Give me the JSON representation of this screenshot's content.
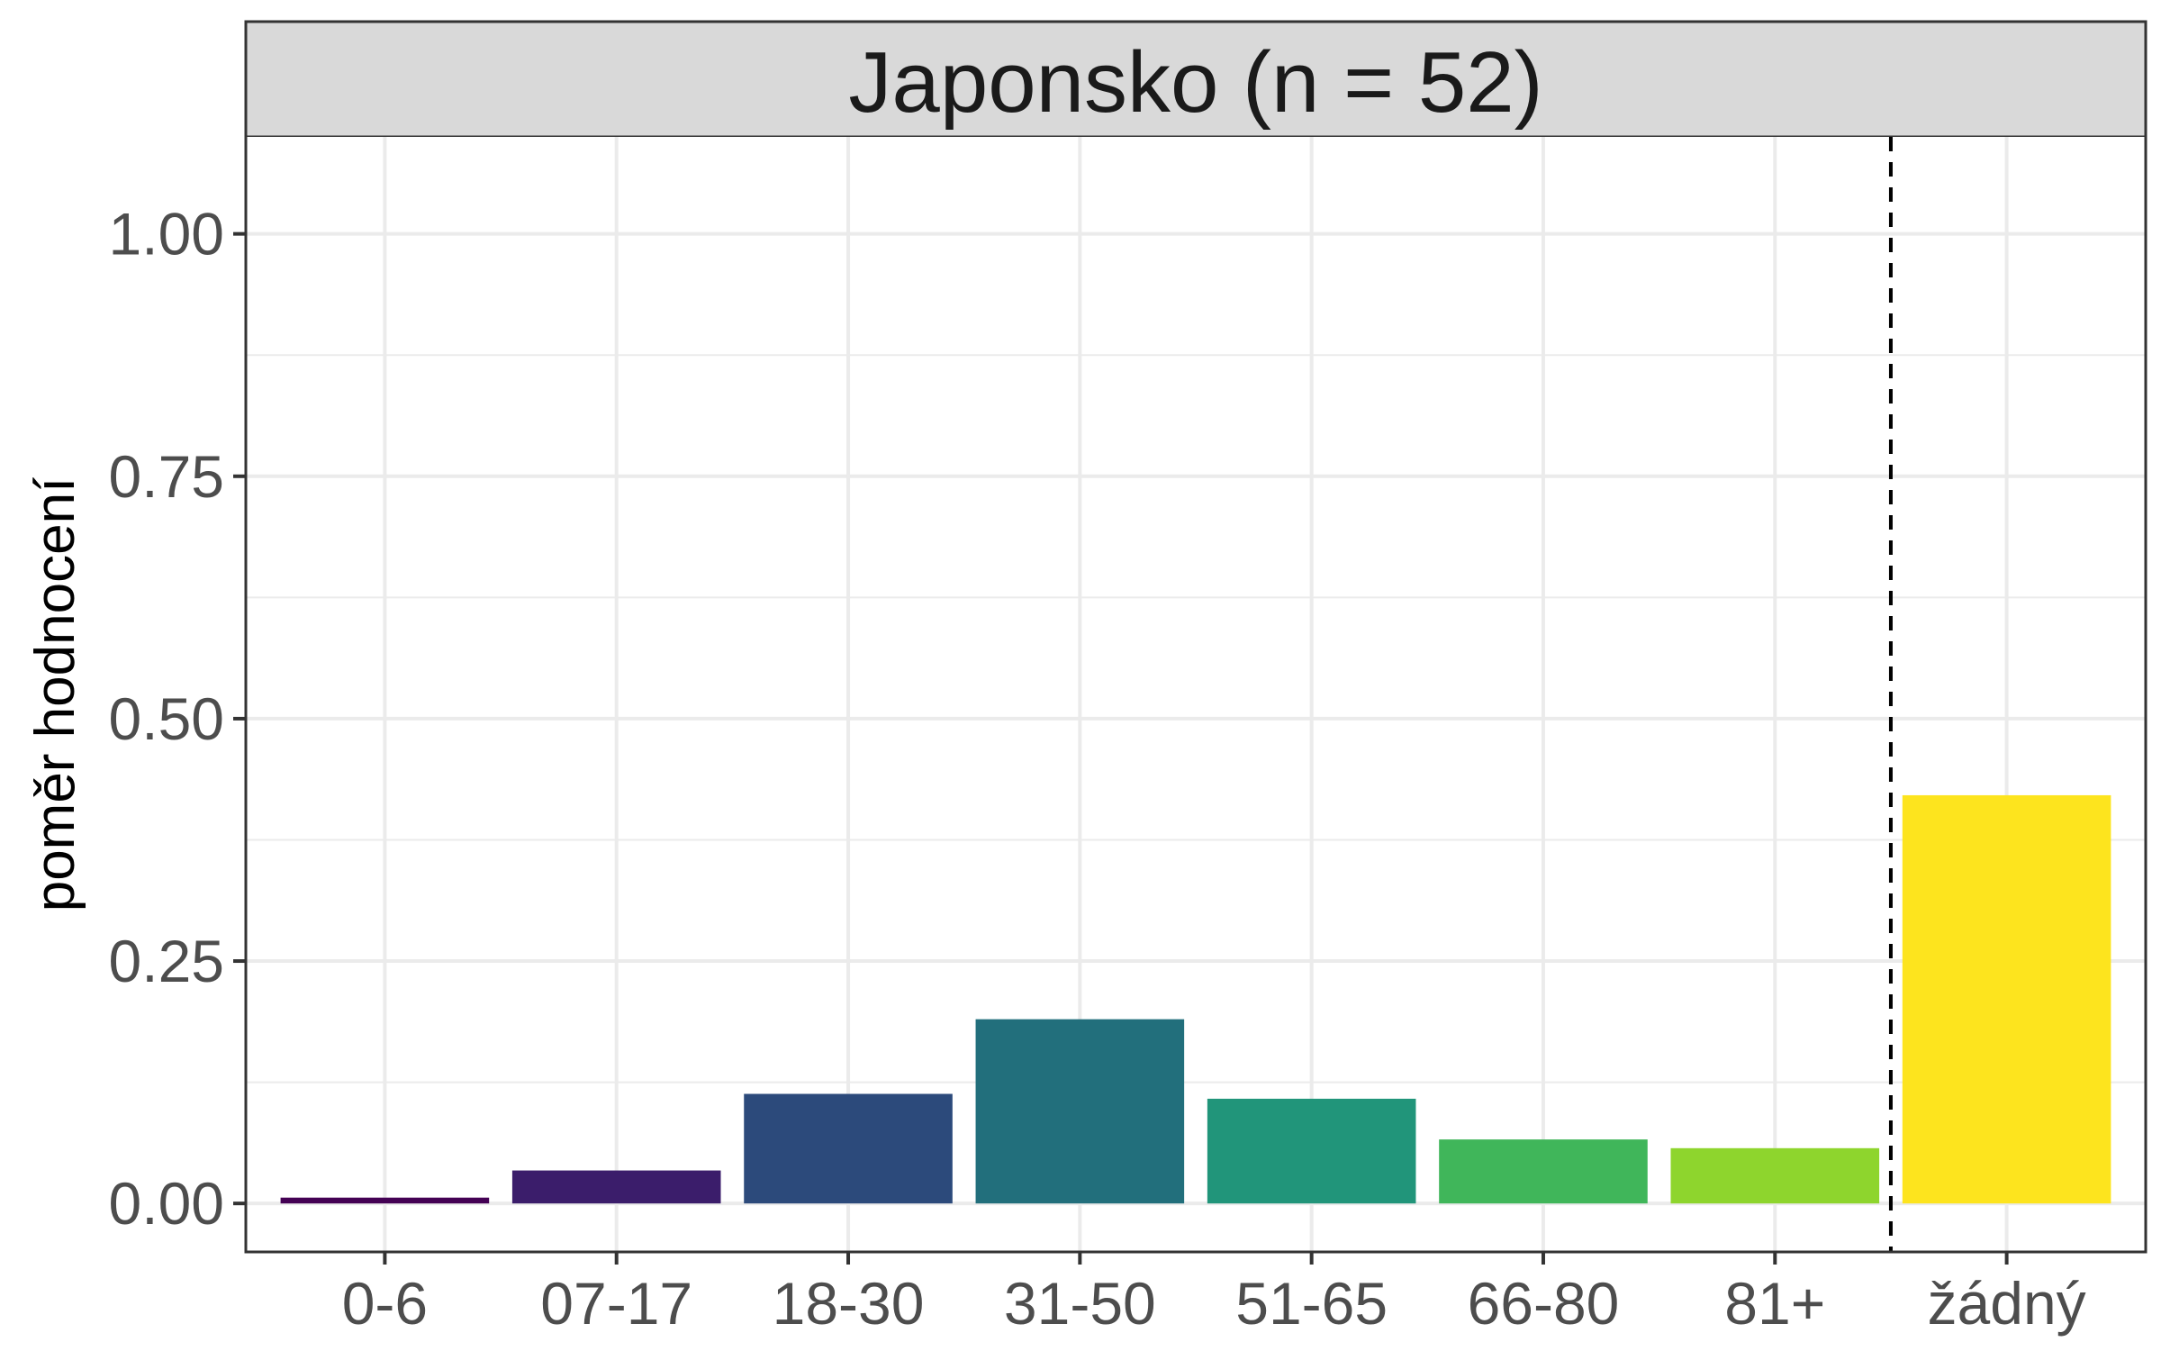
{
  "chart_data": {
    "type": "bar",
    "title": "Japonsko (n = 52)",
    "xlabel": "",
    "ylabel": "poměr hodnocení",
    "categories": [
      "0-6",
      "07-17",
      "18-30",
      "31-50",
      "51-65",
      "66-80",
      "81+",
      "žádný"
    ],
    "values": [
      0.006,
      0.034,
      0.113,
      0.19,
      0.108,
      0.066,
      0.057,
      0.421
    ],
    "colors": [
      "#440154",
      "#3B1D6B",
      "#2C4A7B",
      "#226F7C",
      "#21957A",
      "#40B65A",
      "#8ED52D",
      "#FDE41E"
    ],
    "ylim": [
      -0.05,
      1.1
    ],
    "yticks": [
      0,
      0.25,
      0.5,
      0.75,
      1
    ],
    "ytick_labels": [
      "0.00",
      "0.25",
      "0.50",
      "0.75",
      "1.00"
    ],
    "grid": true,
    "legend": "none",
    "separator": {
      "style": "dashed",
      "between": [
        "81+",
        "žádný"
      ]
    }
  }
}
